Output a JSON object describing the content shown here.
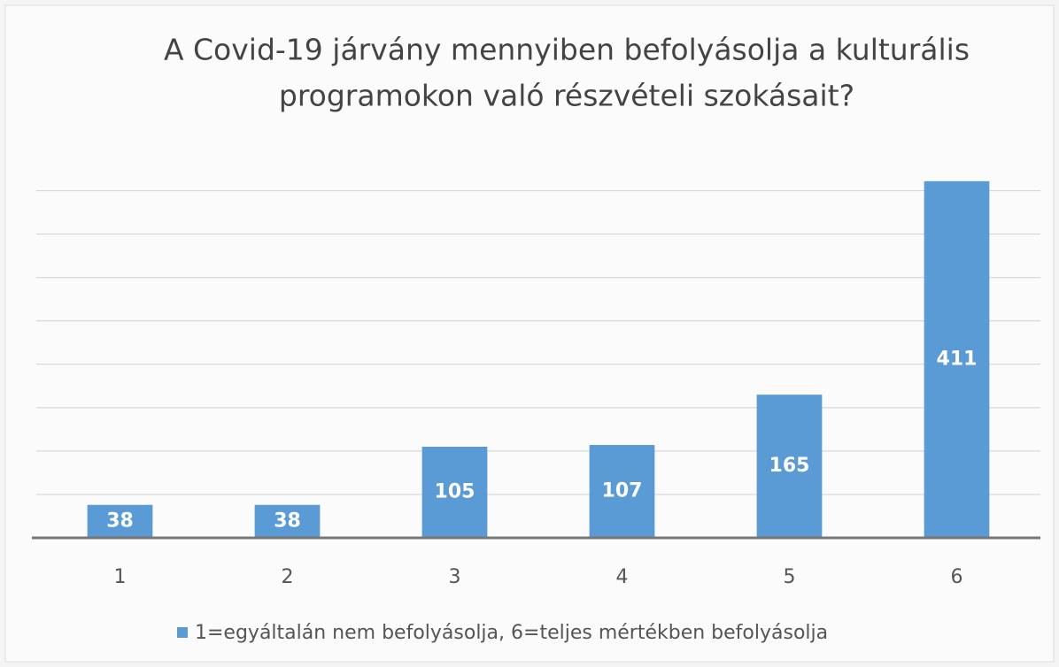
{
  "chart_data": {
    "type": "bar",
    "title": [
      "A Covid-19 járvány mennyiben befolyásolja a kulturális",
      "programokon való részvételi szokásait?"
    ],
    "categories": [
      "1",
      "2",
      "3",
      "4",
      "5",
      "6"
    ],
    "series": [
      {
        "name": "1=egyáltalán nem befolyásolja, 6=teljes mértékben befolyásolja",
        "color": "#5b9bd5",
        "values": [
          38,
          38,
          105,
          107,
          165,
          411
        ]
      }
    ],
    "ylim": [
      0,
      420
    ],
    "yticks": [
      0,
      50,
      100,
      150,
      200,
      250,
      300,
      350,
      400
    ],
    "grid": true,
    "legend": "bottom"
  }
}
